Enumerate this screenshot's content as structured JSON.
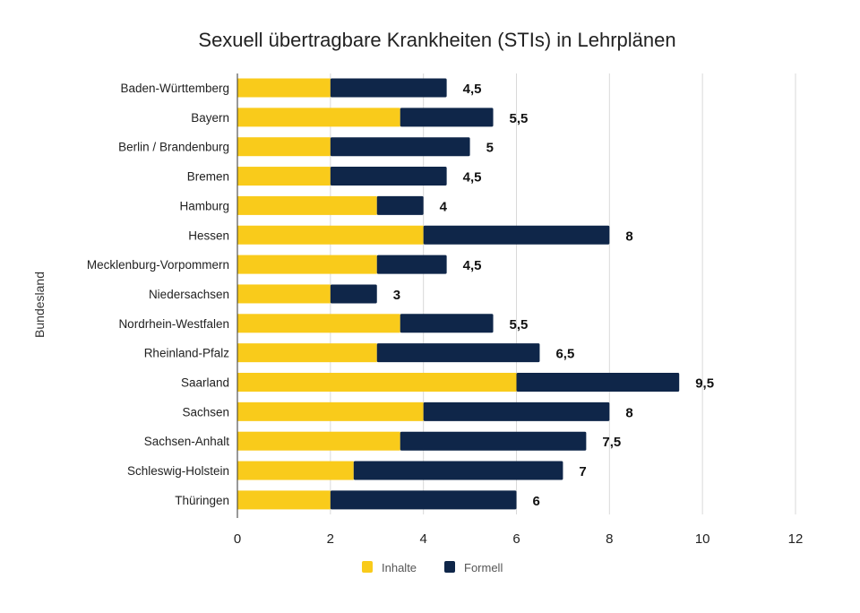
{
  "chart_data": {
    "type": "bar",
    "orientation": "horizontal",
    "stacked": true,
    "title": "Sexuell übertragbare Krankheiten (STIs) in Lehrplänen",
    "xlabel": "",
    "ylabel": "Bundesland",
    "xlim": [
      0,
      12
    ],
    "xticks": [
      0,
      2,
      4,
      6,
      8,
      10,
      12
    ],
    "xtick_labels": [
      "0",
      "2",
      "4",
      "6",
      "8",
      "10",
      "12"
    ],
    "grid": true,
    "legend_position": "bottom-center",
    "categories": [
      "Baden-Württemberg",
      "Bayern",
      "Berlin / Brandenburg",
      "Bremen",
      "Hamburg",
      "Hessen",
      "Mecklenburg-Vorpommern",
      "Niedersachsen",
      "Nordrhein-Westfalen",
      "Rheinland-Pfalz",
      "Saarland",
      "Sachsen",
      "Sachsen-Anhalt",
      "Schleswig-Holstein",
      "Thüringen"
    ],
    "series": [
      {
        "name": "Inhalte",
        "color": "#F9CB1B",
        "values": [
          2,
          3.5,
          2,
          2,
          3,
          4,
          3,
          2,
          3.5,
          3,
          6,
          4,
          3.5,
          2.5,
          2
        ]
      },
      {
        "name": "Formell",
        "color": "#0F2649",
        "values": [
          2.5,
          2,
          3,
          2.5,
          1,
          4,
          1.5,
          1,
          2,
          3.5,
          3.5,
          4,
          4,
          4.5,
          4
        ]
      }
    ],
    "totals": [
      4.5,
      5.5,
      5,
      4.5,
      4,
      8,
      4.5,
      3,
      5.5,
      6.5,
      9.5,
      8,
      7.5,
      7,
      6
    ],
    "total_labels": [
      "4,5",
      "5,5",
      "5",
      "4,5",
      "4",
      "8",
      "4,5",
      "3",
      "5,5",
      "6,5",
      "9,5",
      "8",
      "7,5",
      "7",
      "6"
    ]
  },
  "colors": {
    "grid": "#D9D9D9",
    "axis": "#333333"
  }
}
